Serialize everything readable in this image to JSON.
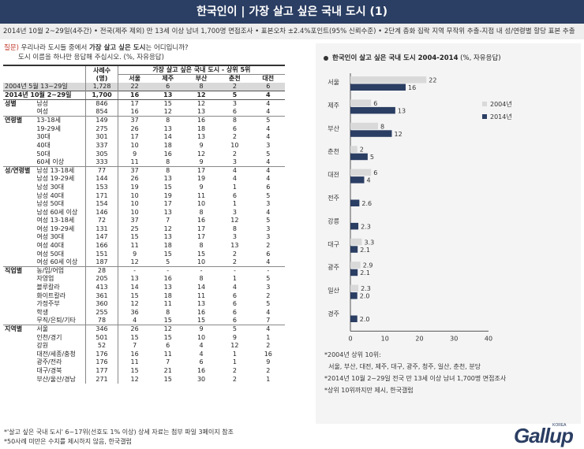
{
  "header": {
    "title": "한국인이 | 가장 살고 싶은 국내 도시 (1)"
  },
  "subheader": {
    "text": "2014년 10월 2~29일(4주간) • 전국(제주 제외) 만 13세 이상 남녀 1,700명 면접조사 • 표본오차 ±2.4%포인트(95% 신뢰수준) • 2단계 층화 집락 지역 무작위 추출-지점 내 성/연령별 할당 표본 추출"
  },
  "question": {
    "tag": "질문)",
    "line1_pre": " 우리나라 도시들 중에서 ",
    "line1_bold": "가장 살고 싶은 도시",
    "line1_post": "는 어디입니까?",
    "line2": "도시 이름을 하나만 응답해 주십시오. (%, 자유응답)"
  },
  "table": {
    "sample_header_line1": "사례수",
    "sample_header_line2": "(명)",
    "cities_header": "가장 살고 싶은 국내 도시 - 상위 5위",
    "cities": [
      "서울",
      "제주",
      "부산",
      "춘천",
      "대전"
    ],
    "summary_rows": [
      {
        "label": "2004년 5월 13~29일",
        "n": "1,728",
        "v": [
          "22",
          "6",
          "8",
          "2",
          "6"
        ]
      },
      {
        "label": "2014년 10월 2~29일",
        "n": "1,700",
        "v": [
          "16",
          "13",
          "12",
          "5",
          "4"
        ]
      }
    ],
    "groups": [
      {
        "title": "성별",
        "rows": [
          {
            "label": "남성",
            "n": "846",
            "v": [
              "17",
              "15",
              "12",
              "3",
              "4"
            ]
          },
          {
            "label": "여성",
            "n": "854",
            "v": [
              "16",
              "12",
              "13",
              "6",
              "4"
            ]
          }
        ]
      },
      {
        "title": "연령별",
        "rows": [
          {
            "label": "13-18세",
            "n": "149",
            "v": [
              "37",
              "8",
              "16",
              "8",
              "5"
            ]
          },
          {
            "label": "19-29세",
            "n": "275",
            "v": [
              "26",
              "13",
              "18",
              "6",
              "4"
            ]
          },
          {
            "label": "30대",
            "n": "301",
            "v": [
              "17",
              "14",
              "13",
              "2",
              "4"
            ]
          },
          {
            "label": "40대",
            "n": "337",
            "v": [
              "10",
              "18",
              "9",
              "10",
              "3"
            ]
          },
          {
            "label": "50대",
            "n": "305",
            "v": [
              "9",
              "16",
              "12",
              "2",
              "5"
            ]
          },
          {
            "label": "60세 이상",
            "n": "333",
            "v": [
              "11",
              "8",
              "9",
              "3",
              "4"
            ]
          }
        ]
      },
      {
        "title": "성/연령별",
        "rows": [
          {
            "label": "남성 13-18세",
            "n": "77",
            "v": [
              "37",
              "8",
              "17",
              "4",
              "4"
            ]
          },
          {
            "label": "남성 19-29세",
            "n": "144",
            "v": [
              "26",
              "13",
              "19",
              "4",
              "4"
            ]
          },
          {
            "label": "남성 30대",
            "n": "153",
            "v": [
              "19",
              "15",
              "9",
              "1",
              "6"
            ]
          },
          {
            "label": "남성 40대",
            "n": "171",
            "v": [
              "10",
              "19",
              "11",
              "6",
              "5"
            ]
          },
          {
            "label": "남성 50대",
            "n": "154",
            "v": [
              "10",
              "17",
              "10",
              "1",
              "3"
            ]
          },
          {
            "label": "남성 60세 이상",
            "n": "146",
            "v": [
              "10",
              "13",
              "8",
              "3",
              "4"
            ]
          },
          {
            "label": "여성 13-18세",
            "n": "72",
            "v": [
              "37",
              "7",
              "16",
              "12",
              "5"
            ]
          },
          {
            "label": "여성 19-29세",
            "n": "131",
            "v": [
              "25",
              "12",
              "17",
              "8",
              "3"
            ]
          },
          {
            "label": "여성 30대",
            "n": "147",
            "v": [
              "15",
              "13",
              "17",
              "3",
              "3"
            ]
          },
          {
            "label": "여성 40대",
            "n": "166",
            "v": [
              "11",
              "18",
              "8",
              "13",
              "2"
            ]
          },
          {
            "label": "여성 50대",
            "n": "151",
            "v": [
              "9",
              "15",
              "15",
              "2",
              "6"
            ]
          },
          {
            "label": "여성 60세 이상",
            "n": "187",
            "v": [
              "12",
              "5",
              "10",
              "2",
              "4"
            ]
          }
        ]
      },
      {
        "title": "직업별",
        "rows": [
          {
            "label": "농/임/어업",
            "n": "28",
            "v": [
              "-",
              "-",
              "-",
              "-",
              "-"
            ]
          },
          {
            "label": "자영업",
            "n": "205",
            "v": [
              "13",
              "16",
              "8",
              "1",
              "5"
            ]
          },
          {
            "label": "블루칼라",
            "n": "413",
            "v": [
              "14",
              "13",
              "14",
              "4",
              "3"
            ]
          },
          {
            "label": "화이트칼라",
            "n": "361",
            "v": [
              "15",
              "18",
              "11",
              "6",
              "2"
            ]
          },
          {
            "label": "가정주부",
            "n": "360",
            "v": [
              "12",
              "11",
              "13",
              "6",
              "5"
            ]
          },
          {
            "label": "학생",
            "n": "255",
            "v": [
              "36",
              "8",
              "16",
              "6",
              "4"
            ]
          },
          {
            "label": "무직/은퇴/기타",
            "n": "78",
            "v": [
              "4",
              "15",
              "15",
              "6",
              "7"
            ]
          }
        ]
      },
      {
        "title": "지역별",
        "rows": [
          {
            "label": "서울",
            "n": "346",
            "v": [
              "26",
              "12",
              "9",
              "5",
              "4"
            ]
          },
          {
            "label": "인천/경기",
            "n": "501",
            "v": [
              "15",
              "15",
              "10",
              "9",
              "1"
            ]
          },
          {
            "label": "강원",
            "n": "52",
            "v": [
              "7",
              "6",
              "4",
              "12",
              "2"
            ]
          },
          {
            "label": "대전/세종/충청",
            "n": "176",
            "v": [
              "16",
              "11",
              "4",
              "1",
              "16"
            ]
          },
          {
            "label": "광주/전라",
            "n": "176",
            "v": [
              "11",
              "7",
              "6",
              "1",
              "9"
            ]
          },
          {
            "label": "대구/경북",
            "n": "177",
            "v": [
              "15",
              "21",
              "16",
              "2",
              "2"
            ]
          },
          {
            "label": "부산/울산/경남",
            "n": "271",
            "v": [
              "12",
              "15",
              "30",
              "2",
              "1"
            ]
          }
        ]
      }
    ]
  },
  "notes_left": [
    "*'살고 싶은 국내 도시' 6~17위(선호도 1% 이상) 상세 자료는 첨부 파일 3페이지 참조",
    "*50사례 미만은 수치를 제시하지 않음, 한국갤럽"
  ],
  "chart_data": {
    "type": "bar",
    "orientation": "horizontal",
    "title_bold": "한국인이 살고 싶은 국내 도시 2004-2014",
    "title_rest": " (%, 자유응답)",
    "categories": [
      "서울",
      "제주",
      "부산",
      "춘천",
      "대전",
      "전주",
      "강릉",
      "대구",
      "광주",
      "일산",
      "경주"
    ],
    "series": [
      {
        "name": "2004년",
        "values": [
          22,
          6,
          8,
          2,
          6,
          null,
          null,
          3.3,
          2.9,
          2.3,
          null
        ],
        "labels": [
          "22",
          "6",
          "8",
          "2",
          "6",
          "",
          "",
          "3.3",
          "2.9",
          "2.3",
          ""
        ],
        "color": "#d9d9d9"
      },
      {
        "name": "2014년",
        "values": [
          16,
          13,
          12,
          5,
          4,
          2.6,
          2.3,
          2.1,
          2.1,
          2.0,
          2.0
        ],
        "labels": [
          "16",
          "13",
          "12",
          "5",
          "4",
          "2.6",
          "2.3",
          "2.1",
          "2.1",
          "2.0",
          "2.0"
        ],
        "color": "#2b3e63"
      }
    ],
    "xlim": [
      0,
      40
    ],
    "xticks": [
      0,
      10,
      20,
      30,
      40
    ],
    "legend_position": "right"
  },
  "notes_right": [
    "*2004년 상위 10위:",
    "  서울, 부산, 대전, 제주, 대구, 광주, 청주, 일산, 춘천, 분당",
    "*2014년 10월 2~29일 전국 만 13세 이상 남녀 1,700명 면접조사",
    "*상위 10위까지만 제시, 한국갤럽"
  ],
  "logo": {
    "text": "Gallup",
    "korea": "KOREA"
  }
}
